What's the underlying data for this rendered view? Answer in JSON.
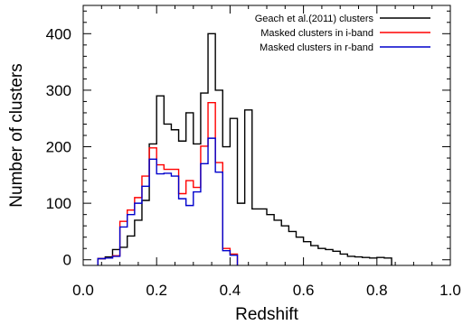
{
  "chart_data": {
    "type": "line",
    "title": "",
    "xlabel": "Redshift",
    "ylabel": "Number of clusters",
    "xlim": [
      0.0,
      1.0
    ],
    "ylim": [
      -10,
      450
    ],
    "x_ticks": [
      {
        "value": 0.0,
        "label": "0.0"
      },
      {
        "value": 0.2,
        "label": "0.2"
      },
      {
        "value": 0.4,
        "label": "0.4"
      },
      {
        "value": 0.6,
        "label": "0.6"
      },
      {
        "value": 0.8,
        "label": "0.8"
      },
      {
        "value": 1.0,
        "label": "1.0"
      }
    ],
    "y_ticks": [
      {
        "value": 0,
        "label": "0"
      },
      {
        "value": 100,
        "label": "100"
      },
      {
        "value": 200,
        "label": "200"
      },
      {
        "value": 300,
        "label": "300"
      },
      {
        "value": 400,
        "label": "400"
      }
    ],
    "x_minor_step": 0.05,
    "y_minor_step": 20,
    "legend_position": "top-right",
    "series": [
      {
        "name": "Geach et al.(2011) clusters",
        "color": "#000000",
        "edges": [
          0.04,
          0.06,
          0.08,
          0.1,
          0.12,
          0.14,
          0.16,
          0.18,
          0.2,
          0.22,
          0.24,
          0.26,
          0.28,
          0.3,
          0.32,
          0.34,
          0.36,
          0.38,
          0.4,
          0.42,
          0.44,
          0.46,
          0.48,
          0.5,
          0.52,
          0.54,
          0.56,
          0.58,
          0.6,
          0.62,
          0.64,
          0.66,
          0.68,
          0.7,
          0.72,
          0.74,
          0.76,
          0.78,
          0.8,
          0.82,
          0.84
        ],
        "values": [
          2,
          5,
          18,
          22,
          42,
          70,
          105,
          205,
          290,
          240,
          230,
          210,
          260,
          205,
          295,
          400,
          300,
          200,
          250,
          100,
          265,
          90,
          90,
          80,
          70,
          60,
          50,
          40,
          32,
          25,
          20,
          18,
          15,
          10,
          6,
          5,
          4,
          3,
          4,
          3
        ]
      },
      {
        "name": "Masked clusters in i-band",
        "color": "#ff0000",
        "edges": [
          0.04,
          0.06,
          0.08,
          0.1,
          0.12,
          0.14,
          0.16,
          0.18,
          0.2,
          0.22,
          0.24,
          0.26,
          0.28,
          0.3,
          0.32,
          0.34,
          0.36,
          0.38,
          0.4,
          0.42
        ],
        "values": [
          2,
          3,
          7,
          68,
          88,
          110,
          148,
          198,
          168,
          160,
          160,
          117,
          140,
          128,
          201,
          278,
          172,
          20,
          10
        ]
      },
      {
        "name": "Masked clusters in r-band",
        "color": "#0000cc",
        "edges": [
          0.04,
          0.06,
          0.08,
          0.1,
          0.12,
          0.14,
          0.16,
          0.18,
          0.2,
          0.22,
          0.24,
          0.26,
          0.28,
          0.3,
          0.32,
          0.34,
          0.36,
          0.38,
          0.4,
          0.42
        ],
        "values": [
          2,
          3,
          6,
          58,
          80,
          100,
          130,
          178,
          152,
          153,
          148,
          108,
          96,
          120,
          170,
          215,
          155,
          16,
          8
        ]
      }
    ]
  }
}
